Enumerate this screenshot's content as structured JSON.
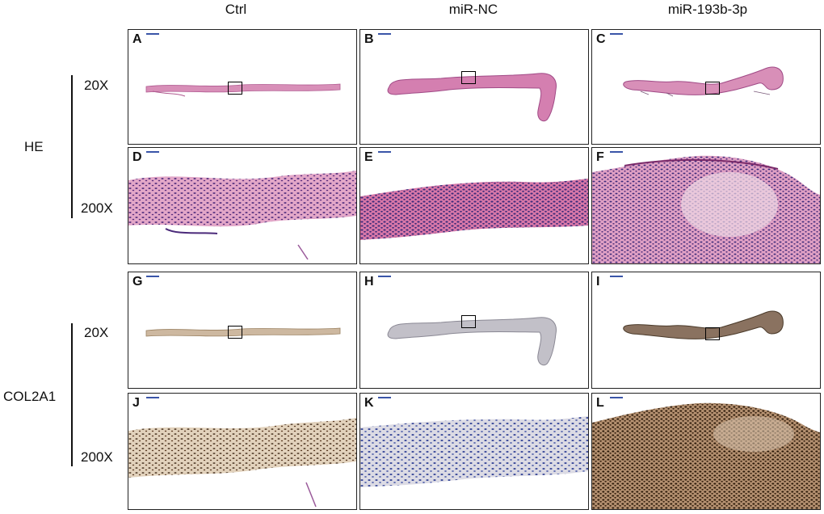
{
  "columns": [
    "Ctrl",
    "miR-NC",
    "miR-193b-3p"
  ],
  "row_groups": [
    {
      "label": "HE",
      "magnifications": [
        "20X",
        "200X"
      ]
    },
    {
      "label": "COL2A1",
      "magnifications": [
        "20X",
        "200X"
      ]
    }
  ],
  "panels": [
    {
      "letter": "A",
      "stain": "HE",
      "magnification": "20X",
      "group": "Ctrl"
    },
    {
      "letter": "B",
      "stain": "HE",
      "magnification": "20X",
      "group": "miR-NC"
    },
    {
      "letter": "C",
      "stain": "HE",
      "magnification": "20X",
      "group": "miR-193b-3p"
    },
    {
      "letter": "D",
      "stain": "HE",
      "magnification": "200X",
      "group": "Ctrl"
    },
    {
      "letter": "E",
      "stain": "HE",
      "magnification": "200X",
      "group": "miR-NC"
    },
    {
      "letter": "F",
      "stain": "HE",
      "magnification": "200X",
      "group": "miR-193b-3p"
    },
    {
      "letter": "G",
      "stain": "COL2A1",
      "magnification": "20X",
      "group": "Ctrl"
    },
    {
      "letter": "H",
      "stain": "COL2A1",
      "magnification": "20X",
      "group": "miR-NC"
    },
    {
      "letter": "I",
      "stain": "COL2A1",
      "magnification": "20X",
      "group": "miR-193b-3p"
    },
    {
      "letter": "J",
      "stain": "COL2A1",
      "magnification": "200X",
      "group": "Ctrl"
    },
    {
      "letter": "K",
      "stain": "COL2A1",
      "magnification": "200X",
      "group": "miR-NC"
    },
    {
      "letter": "L",
      "stain": "COL2A1",
      "magnification": "200X",
      "group": "miR-193b-3p"
    }
  ],
  "colors": {
    "he_tissue": "#d88fb8",
    "he_nuclei": "#3b2a7a",
    "col2a1_tissue_ctrl": "#cdb8a0",
    "col2a1_tissue_nc": "#b9b9c4",
    "col2a1_tissue_high": "#6b4a2e",
    "col2a1_nuclei_brown": "#3a2412",
    "col2a1_nuclei_blue": "#3b4a9a"
  }
}
